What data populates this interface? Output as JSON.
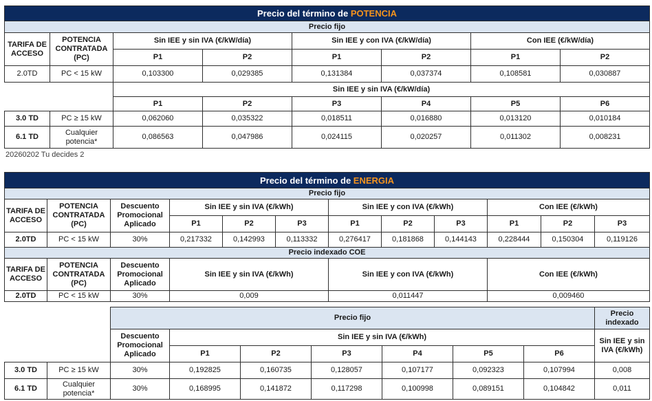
{
  "potencia": {
    "title_prefix": "Precio del término de ",
    "title_highlight": "POTENCIA",
    "precio_fijo": "Precio fijo",
    "col_tarifa": "TARIFA DE ACCESO",
    "col_potencia": "POTENCIA CONTRATADA (PC)",
    "group_sin_iee_sin_iva": "Sin IEE y sin IVA (€/kW/día)",
    "group_sin_iee_con_iva": "Sin IEE y con IVA (€/kW/día)",
    "group_con_iee": "Con IEE (€/kW/día)",
    "row_2_0td": {
      "tarifa": "2.0TD",
      "pc": "PC < 15 kW",
      "values": [
        "0,103300",
        "0,029385",
        "0,131384",
        "0,037374",
        "0,108581",
        "0,030887"
      ]
    },
    "group_6p": "Sin IEE y sin IVA (€/kW/día)",
    "periods_6": [
      "P1",
      "P2",
      "P3",
      "P4",
      "P5",
      "P6"
    ],
    "rows_6p": [
      {
        "tarifa": "3.0 TD",
        "pc": "PC ≥ 15 kW",
        "values": [
          "0,062060",
          "0,035322",
          "0,018511",
          "0,016880",
          "0,013120",
          "0,010184"
        ]
      },
      {
        "tarifa": "6.1 TD",
        "pc": "Cualquier potencia*",
        "values": [
          "0,086563",
          "0,047986",
          "0,024115",
          "0,020257",
          "0,011302",
          "0,008231"
        ]
      }
    ]
  },
  "note": "20260202 Tu decides 2",
  "energia": {
    "title_prefix": "Precio del término de ",
    "title_highlight": "ENERGIA",
    "precio_fijo": "Precio fijo",
    "precio_indexado_coe": "Precio indexado COE",
    "col_tarifa": "TARIFA DE ACCESO",
    "col_potencia": "POTENCIA CONTRATADA (PC)",
    "col_descuento": "Descuento Promocional Aplicado",
    "group_sin_iee_sin_iva": "Sin IEE y sin IVA (€/kWh)",
    "group_sin_iee_con_iva": "Sin IEE y con IVA (€/kWh)",
    "group_con_iee": "Con IEE (€/kWh)",
    "periods_3": [
      "P1",
      "P2",
      "P3"
    ],
    "row_fijo_2_0td": {
      "tarifa": "2.0TD",
      "pc": "PC < 15 kW",
      "descuento": "30%",
      "values": [
        "0,217332",
        "0,142993",
        "0,113332",
        "0,276417",
        "0,181868",
        "0,144143",
        "0,228444",
        "0,150304",
        "0,119126"
      ]
    },
    "row_indexado_2_0td": {
      "tarifa": "2.0TD",
      "pc": "PC < 15 kW",
      "descuento": "30%",
      "values": [
        "0,009",
        "0,011447",
        "0,009460"
      ]
    },
    "bottom": {
      "precio_fijo": "Precio fijo",
      "precio_indexado": "Precio indexado",
      "col_descuento": "Descuento Promocional Aplicado",
      "group_sin_iee_sin_iva": "Sin IEE y sin IVA (€/kWh)",
      "indexado_sub": "Sin IEE y sin IVA (€/kWh)",
      "periods_6": [
        "P1",
        "P2",
        "P3",
        "P4",
        "P5",
        "P6"
      ],
      "rows": [
        {
          "tarifa": "3.0 TD",
          "pc": "PC ≥ 15 kW",
          "descuento": "30%",
          "values": [
            "0,192825",
            "0,160735",
            "0,128057",
            "0,107177",
            "0,092323",
            "0,107994"
          ],
          "indexado": "0,008"
        },
        {
          "tarifa": "6.1 TD",
          "pc": "Cualquier potencia*",
          "descuento": "30%",
          "values": [
            "0,168995",
            "0,141872",
            "0,117298",
            "0,100998",
            "0,089151",
            "0,104842"
          ],
          "indexado": "0,011"
        }
      ]
    }
  }
}
